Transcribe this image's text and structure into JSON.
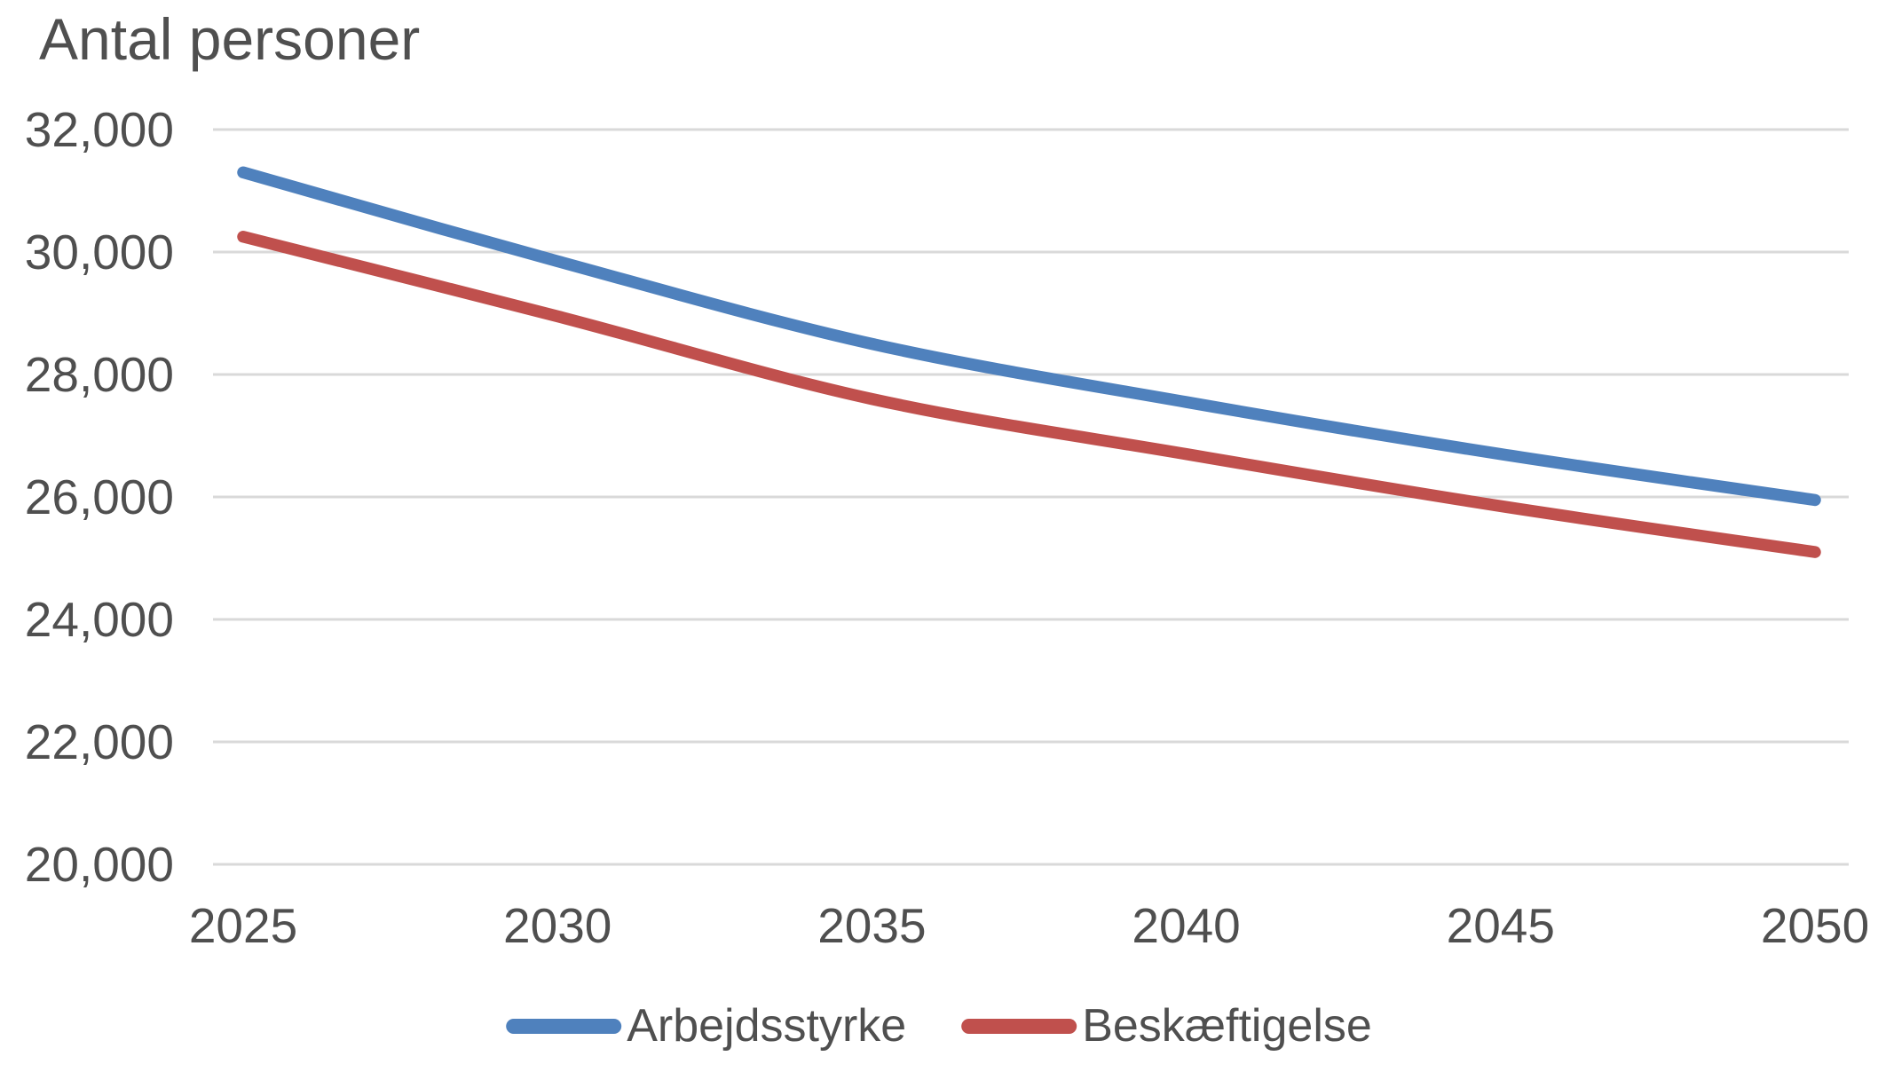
{
  "chart_data": {
    "type": "line",
    "title": "Antal personer",
    "categories": [
      2025,
      2030,
      2035,
      2040,
      2045,
      2050
    ],
    "x_tick_labels": [
      "2025",
      "2030",
      "2035",
      "2040",
      "2045",
      "2050"
    ],
    "y_tick_values": [
      32000,
      30000,
      28000,
      26000,
      24000,
      22000,
      20000
    ],
    "y_tick_labels": [
      "32,000",
      "30,000",
      "28,000",
      "26,000",
      "24,000",
      "22,000",
      "20,000"
    ],
    "ylim": [
      20000,
      32000
    ],
    "grid": "horizontal-only",
    "line_style": "smooth-rounded-caps",
    "legend_position": "bottom-center",
    "series": [
      {
        "name": "Arbejdsstyrke",
        "color": "#4F81BD",
        "values": [
          31300,
          29850,
          28500,
          27550,
          26700,
          25950
        ]
      },
      {
        "name": "Beskæftigelse",
        "color": "#C0504D",
        "values": [
          30250,
          28950,
          27600,
          26700,
          25850,
          25100
        ]
      }
    ]
  },
  "colors": {
    "gridline": "#D9D9D9",
    "axis_text": "#4F4F4F",
    "background": "#FFFFFF"
  }
}
